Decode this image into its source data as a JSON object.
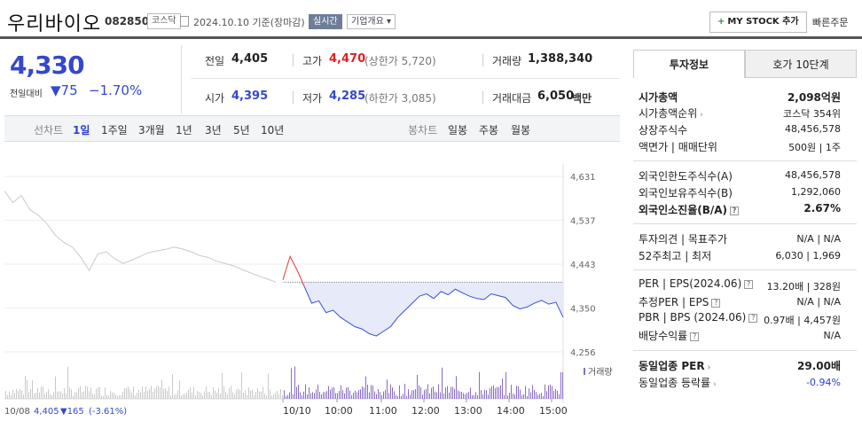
{
  "header": {
    "name": "우리바이오",
    "code": "082850",
    "market": "코스닥",
    "date": "2024.10.10 기준(장마감)",
    "realtime": "실시간",
    "company_info": "기업개요 ▾",
    "mystock": "MY STOCK 추가",
    "quick_order": "빠른주문"
  },
  "price": {
    "current": "4,330",
    "change_label": "전일대비",
    "change_amount": "▼75",
    "change_percent": "−1.70%"
  },
  "quote": {
    "prev_label": "전일",
    "prev": "4,405",
    "high_label": "고가",
    "high": "4,470",
    "upper_label": "(상한가",
    "upper": "5,720",
    "upper_close": ")",
    "volume_label": "거래량",
    "volume": "1,388,340",
    "open_label": "시가",
    "open": "4,395",
    "low_label": "저가",
    "low": "4,285",
    "lower_label": "(하한가",
    "lower": "3,085",
    "lower_close": ")",
    "amount_label": "거래대금",
    "amount": "6,050",
    "amount_unit": "백만"
  },
  "period_tabs": {
    "line_label": "선차트",
    "items": [
      "1일",
      "1주일",
      "3개월",
      "1년",
      "3년",
      "5년",
      "10년"
    ],
    "candle_label": "봉차트",
    "candle_items": [
      "일봉",
      "주봉",
      "월봉"
    ]
  },
  "chart_data": {
    "type": "line",
    "y_ticks": [
      "4,631",
      "4,537",
      "4,443",
      "4,350",
      "4,256"
    ],
    "y_range": [
      4256,
      4631
    ],
    "x_ticks": [
      "10/10",
      "10:00",
      "11:00",
      "12:00",
      "13:00",
      "14:00",
      "15:00"
    ],
    "prev_day_label": "10/08",
    "prev_day_close": "4,405",
    "prev_day_change": "▼165",
    "prev_day_pct": "(-3.61%)",
    "volume_label": "거래량",
    "reference_price": 4405,
    "colors": {
      "prev": "#c9c9c9",
      "up": "#e8363b",
      "down": "#3a4fd0",
      "fill": "#e6eaf9",
      "vol_prev": "#c9c9c9",
      "vol_today": "#8a6cc5"
    },
    "prev_day_series": [
      4600,
      4575,
      4590,
      4560,
      4548,
      4530,
      4505,
      4490,
      4480,
      4458,
      4430,
      4465,
      4470,
      4455,
      4445,
      4452,
      4460,
      4468,
      4472,
      4475,
      4480,
      4476,
      4470,
      4462,
      4458,
      4450,
      4445,
      4440,
      4432,
      4425,
      4418,
      4412,
      4405
    ],
    "today_series": [
      4410,
      4460,
      4430,
      4395,
      4360,
      4365,
      4340,
      4345,
      4330,
      4320,
      4310,
      4305,
      4295,
      4290,
      4300,
      4310,
      4330,
      4345,
      4360,
      4375,
      4380,
      4370,
      4385,
      4378,
      4390,
      4382,
      4375,
      4370,
      4368,
      4380,
      4376,
      4372,
      4355,
      4348,
      4352,
      4360,
      4366,
      4358,
      4362,
      4330
    ]
  },
  "panel": {
    "tab_invest": "투자정보",
    "tab_hoga": "호가 10단계",
    "market_cap_label": "시가총액",
    "market_cap": "2,098억원",
    "rank_label": "시가총액순위",
    "rank": "코스닥 354위",
    "shares_label": "상장주식수",
    "shares": "48,456,578",
    "par_label": "액면가 | 매매단위",
    "par": "500원 | 1주",
    "foreign_limit_label": "외국인한도주식수(A)",
    "foreign_limit": "48,456,578",
    "foreign_hold_label": "외국인보유주식수(B)",
    "foreign_hold": "1,292,060",
    "foreign_ratio_label": "외국인소진율(B/A)",
    "foreign_ratio": "2.67%",
    "opinion_label": "투자의견 | 목표주가",
    "opinion": "N/A | N/A",
    "week52_label": "52주최고 | 최저",
    "week52": "6,030 | 1,969",
    "per_label": "PER | EPS(2024.06)",
    "per": "13.20배 | 328원",
    "est_per_label": "추정PER | EPS",
    "est_per": "N/A | N/A",
    "pbr_label": "PBR | BPS (2024.06)",
    "pbr": "0.97배 | 4,457원",
    "dividend_label": "배당수익률",
    "dividend": "N/A",
    "industry_per_label": "동일업종 PER",
    "industry_per": "29.00배",
    "industry_rate_label": "동일업종 등락률",
    "industry_rate": "-0.94%"
  }
}
